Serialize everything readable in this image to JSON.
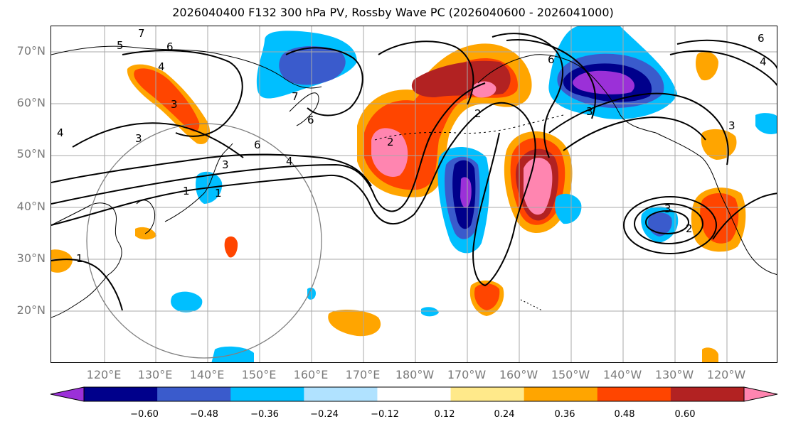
{
  "title": "2026040400 F132 300 hPa PV, Rossby Wave PC (2026040600 - 2026041000)",
  "map": {
    "lat_labels": [
      "70°N",
      "60°N",
      "50°N",
      "40°N",
      "30°N",
      "20°N"
    ],
    "lon_labels": [
      "120°E",
      "130°E",
      "140°E",
      "150°E",
      "160°E",
      "170°E",
      "180°W",
      "170°W",
      "160°W",
      "150°W",
      "140°W",
      "130°W",
      "120°W"
    ],
    "contour_labels": [
      "5",
      "6",
      "7",
      "4",
      "3",
      "3",
      "6",
      "6",
      "4",
      "1",
      "1",
      "2",
      "2",
      "6",
      "7",
      "3",
      "3",
      "4",
      "1",
      "3",
      "2",
      "6",
      "4",
      "3"
    ]
  },
  "colorbar": {
    "ticks": [
      "−0.60",
      "−0.48",
      "−0.36",
      "−0.24",
      "−0.12",
      "0.12",
      "0.24",
      "0.36",
      "0.48",
      "0.60"
    ],
    "colors": [
      "#9b30d8",
      "#00008b",
      "#3a5bcc",
      "#00bfff",
      "#b0e2ff",
      "#ffffff",
      "#ffe98a",
      "#ffa500",
      "#ff4500",
      "#b22222",
      "#ff85b0"
    ]
  }
}
